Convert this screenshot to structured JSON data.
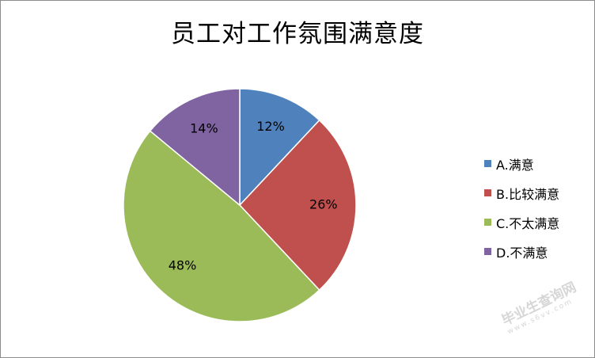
{
  "chart_data": {
    "type": "pie",
    "title": "员工对工作氛围满意度",
    "categories": [
      "A.满意",
      "B.比较满意",
      "C.不太满意",
      "D.不满意"
    ],
    "values": [
      12,
      26,
      48,
      14
    ],
    "data_labels": [
      "12%",
      "26%",
      "48%",
      "14%"
    ],
    "colors": [
      "#4f81bd",
      "#c0504d",
      "#9bbb59",
      "#8064a2"
    ],
    "legend_position": "right"
  },
  "watermark": {
    "text": "毕业生查询网",
    "sub": "www.s6vv.com"
  }
}
